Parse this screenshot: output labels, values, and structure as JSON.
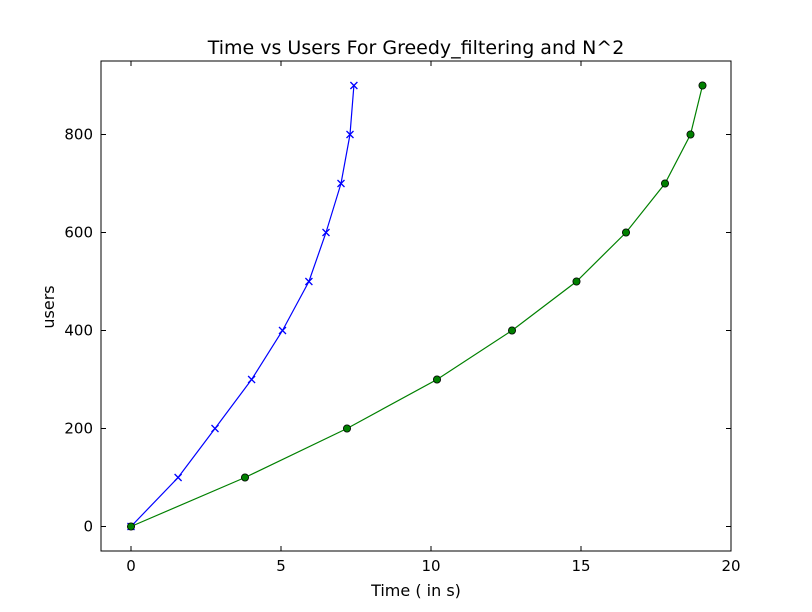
{
  "chart_data": {
    "type": "line",
    "title": "Time vs Users For Greedy_filtering and N^2",
    "xlabel": "Time ( in s)",
    "ylabel": "users",
    "xlim": [
      -1,
      20
    ],
    "ylim": [
      -50,
      950
    ],
    "xticks": [
      0,
      5,
      10,
      15,
      20
    ],
    "yticks": [
      0,
      200,
      400,
      600,
      800
    ],
    "grid": false,
    "legend": "none",
    "series": [
      {
        "color": "#0000ff",
        "marker": "x",
        "x": [
          0,
          1.57,
          2.8,
          4.02,
          5.05,
          5.93,
          6.5,
          7.0,
          7.3,
          7.43
        ],
        "y": [
          0,
          100,
          200,
          300,
          400,
          500,
          600,
          700,
          800,
          900
        ]
      },
      {
        "color": "#008000",
        "marker": "circle",
        "x": [
          0,
          3.8,
          7.2,
          10.2,
          12.7,
          14.85,
          16.5,
          17.8,
          18.65,
          19.05
        ],
        "y": [
          0,
          100,
          200,
          300,
          400,
          500,
          600,
          700,
          800,
          900
        ]
      }
    ]
  }
}
